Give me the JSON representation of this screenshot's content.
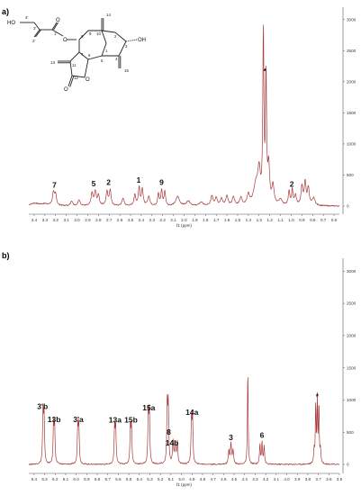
{
  "figure": {
    "panel_labels": [
      "a)",
      "b)"
    ],
    "spectrum_color": "#a93a3c"
  },
  "structure": {
    "atom_numbers": [
      "4'",
      "3'",
      "2'",
      "1'",
      "8",
      "9",
      "10",
      "14",
      "2",
      "3",
      "7",
      "6",
      "5",
      "1",
      "4",
      "11",
      "12",
      "13",
      "15"
    ],
    "heteroatoms": [
      "HO",
      "O",
      "O",
      "O",
      "OH",
      "O",
      "O"
    ]
  },
  "chart_data": [
    {
      "type": "line",
      "xlabel": "f1 (ppm)",
      "x_reversed": true,
      "xlim": [
        3.45,
        0.55
      ],
      "ylim": [
        -100,
        3200
      ],
      "x_ticks": [
        "3.4",
        "3.3",
        "3.2",
        "3.1",
        "3.0",
        "2.9",
        "2.8",
        "2.7",
        "2.6",
        "2.5",
        "2.4",
        "2.3",
        "2.2",
        "2.1",
        "2.0",
        "1.9",
        "1.8",
        "1.7",
        "1.6",
        "1.5",
        "1.4",
        "1.3",
        "1.2",
        "1.1",
        "1.0",
        "0.9",
        "0.8",
        "0.7",
        "0.6"
      ],
      "y_ticks": [
        "0",
        "500",
        "1000",
        "1500",
        "2000",
        "2500",
        "3000"
      ],
      "peaks": [
        {
          "ppm": 3.4,
          "height": 40,
          "width": 0.05
        },
        {
          "ppm": 3.3,
          "height": 30,
          "width": 0.05
        },
        {
          "ppm": 3.22,
          "height": 210,
          "width": 0.01
        },
        {
          "ppm": 3.2,
          "height": 170,
          "width": 0.01
        },
        {
          "ppm": 3.05,
          "height": 80,
          "width": 0.012
        },
        {
          "ppm": 2.98,
          "height": 95,
          "width": 0.012
        },
        {
          "ppm": 2.86,
          "height": 200,
          "width": 0.01
        },
        {
          "ppm": 2.83,
          "height": 230,
          "width": 0.01
        },
        {
          "ppm": 2.8,
          "height": 170,
          "width": 0.01
        },
        {
          "ppm": 2.72,
          "height": 230,
          "width": 0.01
        },
        {
          "ppm": 2.69,
          "height": 250,
          "width": 0.01
        },
        {
          "ppm": 2.57,
          "height": 120,
          "width": 0.012
        },
        {
          "ppm": 2.46,
          "height": 170,
          "width": 0.01
        },
        {
          "ppm": 2.42,
          "height": 290,
          "width": 0.009
        },
        {
          "ppm": 2.39,
          "height": 270,
          "width": 0.009
        },
        {
          "ppm": 2.33,
          "height": 150,
          "width": 0.012
        },
        {
          "ppm": 2.24,
          "height": 200,
          "width": 0.008
        },
        {
          "ppm": 2.21,
          "height": 250,
          "width": 0.008
        },
        {
          "ppm": 2.18,
          "height": 230,
          "width": 0.008
        },
        {
          "ppm": 2.06,
          "height": 150,
          "width": 0.02
        },
        {
          "ppm": 1.96,
          "height": 80,
          "width": 0.02
        },
        {
          "ppm": 1.84,
          "height": 60,
          "width": 0.018
        },
        {
          "ppm": 1.74,
          "height": 160,
          "width": 0.012
        },
        {
          "ppm": 1.7,
          "height": 130,
          "width": 0.012
        },
        {
          "ppm": 1.65,
          "height": 110,
          "width": 0.012
        },
        {
          "ppm": 1.6,
          "height": 150,
          "width": 0.012
        },
        {
          "ppm": 1.54,
          "height": 140,
          "width": 0.012
        },
        {
          "ppm": 1.47,
          "height": 120,
          "width": 0.014
        },
        {
          "ppm": 1.4,
          "height": 160,
          "width": 0.014
        },
        {
          "ppm": 1.33,
          "height": 300,
          "width": 0.025
        },
        {
          "ppm": 1.3,
          "height": 500,
          "width": 0.015
        },
        {
          "ppm": 1.26,
          "height": 2750,
          "width": 0.006
        },
        {
          "ppm": 1.235,
          "height": 2050,
          "width": 0.006
        },
        {
          "ppm": 1.21,
          "height": 600,
          "width": 0.01
        },
        {
          "ppm": 1.17,
          "height": 300,
          "width": 0.012
        },
        {
          "ppm": 1.1,
          "height": 90,
          "width": 0.02
        },
        {
          "ppm": 1.02,
          "height": 230,
          "width": 0.008
        },
        {
          "ppm": 0.99,
          "height": 250,
          "width": 0.008
        },
        {
          "ppm": 0.96,
          "height": 160,
          "width": 0.01
        },
        {
          "ppm": 0.9,
          "height": 300,
          "width": 0.01
        },
        {
          "ppm": 0.87,
          "height": 360,
          "width": 0.01
        },
        {
          "ppm": 0.84,
          "height": 280,
          "width": 0.01
        },
        {
          "ppm": 0.79,
          "height": 120,
          "width": 0.015
        }
      ],
      "annotations": [
        {
          "text": "7",
          "ppm": 3.21,
          "y": 300
        },
        {
          "text": "5",
          "ppm": 2.845,
          "y": 320
        },
        {
          "text": "2",
          "ppm": 2.705,
          "y": 340
        },
        {
          "text": "1",
          "ppm": 2.425,
          "y": 380
        },
        {
          "text": "9",
          "ppm": 2.21,
          "y": 340
        },
        {
          "text": "*",
          "ppm": 1.245,
          "y": 2130
        },
        {
          "text": "2",
          "ppm": 0.995,
          "y": 310
        }
      ]
    },
    {
      "type": "line",
      "xlabel": "f1 (ppm)",
      "x_reversed": true,
      "xlim": [
        6.45,
        3.5
      ],
      "ylim": [
        -100,
        3200
      ],
      "x_ticks": [
        "6.4",
        "6.3",
        "6.2",
        "6.1",
        "6.0",
        "5.9",
        "5.8",
        "5.7",
        "5.6",
        "5.5",
        "5.4",
        "5.3",
        "5.2",
        "5.1",
        "5.0",
        "4.9",
        "4.8",
        "4.7",
        "4.6",
        "4.5",
        "4.4",
        "4.3",
        "4.2",
        "4.1",
        "4.0",
        "3.9",
        "3.8",
        "3.7",
        "3.6",
        "3.5"
      ],
      "y_ticks": [
        "0",
        "500",
        "1000",
        "1500",
        "2000",
        "2500",
        "3000"
      ],
      "peaks": [
        {
          "ppm": 6.315,
          "height": 780,
          "width": 0.005
        },
        {
          "ppm": 6.305,
          "height": 760,
          "width": 0.005
        },
        {
          "ppm": 6.215,
          "height": 590,
          "width": 0.005
        },
        {
          "ppm": 6.205,
          "height": 600,
          "width": 0.005
        },
        {
          "ppm": 5.985,
          "height": 580,
          "width": 0.005
        },
        {
          "ppm": 5.975,
          "height": 590,
          "width": 0.005
        },
        {
          "ppm": 5.635,
          "height": 570,
          "width": 0.005
        },
        {
          "ppm": 5.625,
          "height": 560,
          "width": 0.005
        },
        {
          "ppm": 5.485,
          "height": 580,
          "width": 0.005
        },
        {
          "ppm": 5.475,
          "height": 560,
          "width": 0.005
        },
        {
          "ppm": 5.315,
          "height": 770,
          "width": 0.005
        },
        {
          "ppm": 5.305,
          "height": 780,
          "width": 0.005
        },
        {
          "ppm": 5.135,
          "height": 920,
          "width": 0.005
        },
        {
          "ppm": 5.125,
          "height": 880,
          "width": 0.005
        },
        {
          "ppm": 5.08,
          "height": 350,
          "width": 0.006
        },
        {
          "ppm": 5.06,
          "height": 310,
          "width": 0.006
        },
        {
          "ppm": 5.04,
          "height": 330,
          "width": 0.006
        },
        {
          "ppm": 4.905,
          "height": 690,
          "width": 0.005
        },
        {
          "ppm": 4.895,
          "height": 700,
          "width": 0.005
        },
        {
          "ppm": 4.55,
          "height": 220,
          "width": 0.006
        },
        {
          "ppm": 4.53,
          "height": 310,
          "width": 0.006
        },
        {
          "ppm": 4.51,
          "height": 220,
          "width": 0.006
        },
        {
          "ppm": 4.37,
          "height": 1520,
          "width": 0.004
        },
        {
          "ppm": 4.255,
          "height": 300,
          "width": 0.005
        },
        {
          "ppm": 4.235,
          "height": 340,
          "width": 0.005
        },
        {
          "ppm": 4.215,
          "height": 280,
          "width": 0.005
        },
        {
          "ppm": 3.74,
          "height": 220,
          "width": 0.005
        },
        {
          "ppm": 3.725,
          "height": 930,
          "width": 0.004
        },
        {
          "ppm": 3.71,
          "height": 980,
          "width": 0.004
        },
        {
          "ppm": 3.695,
          "height": 940,
          "width": 0.004
        },
        {
          "ppm": 3.68,
          "height": 210,
          "width": 0.005
        }
      ],
      "annotations": [
        {
          "text": "3'b",
          "ppm": 6.32,
          "y": 860
        },
        {
          "text": "13b",
          "ppm": 6.21,
          "y": 660
        },
        {
          "text": "3'a",
          "ppm": 5.98,
          "y": 660
        },
        {
          "text": "13a",
          "ppm": 5.63,
          "y": 650
        },
        {
          "text": "15b",
          "ppm": 5.48,
          "y": 650
        },
        {
          "text": "15a",
          "ppm": 5.31,
          "y": 840
        },
        {
          "text": "8",
          "ppm": 5.12,
          "y": 460
        },
        {
          "text": "14b",
          "ppm": 5.09,
          "y": 290
        },
        {
          "text": "14a",
          "ppm": 4.9,
          "y": 770
        },
        {
          "text": "3",
          "ppm": 4.53,
          "y": 380
        },
        {
          "text": "6",
          "ppm": 4.235,
          "y": 410
        },
        {
          "text": "*",
          "ppm": 3.71,
          "y": 1010
        }
      ]
    }
  ]
}
